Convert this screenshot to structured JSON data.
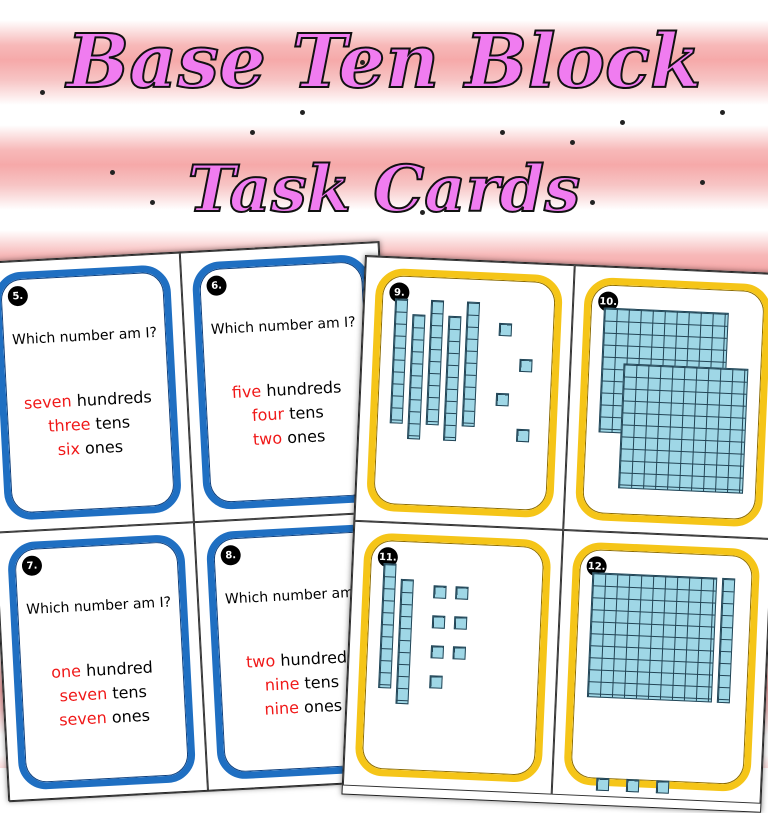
{
  "title": {
    "line1": "Base Ten Block",
    "line2": "Task Cards"
  },
  "colors": {
    "title_fill": "#f07cf0",
    "red_words": "#f01818",
    "blue_frame": "#1f6fc2",
    "yellow_frame": "#f5c518",
    "block": "#9fd7e6"
  },
  "left_sheet": {
    "cards": [
      {
        "number": "5.",
        "question": "Which number am I?",
        "lines": [
          {
            "red": "seven",
            "black": " hundreds"
          },
          {
            "red": "three",
            "black": " tens"
          },
          {
            "red": "six",
            "black": " ones"
          }
        ]
      },
      {
        "number": "6.",
        "question": "Which number am I?",
        "lines": [
          {
            "red": "five",
            "black": " hundreds"
          },
          {
            "red": "four",
            "black": " tens"
          },
          {
            "red": "two",
            "black": " ones"
          }
        ]
      },
      {
        "number": "7.",
        "question": "Which number am I?",
        "lines": [
          {
            "red": "one",
            "black": " hundred"
          },
          {
            "red": "seven",
            "black": " tens"
          },
          {
            "red": "seven",
            "black": " ones"
          }
        ]
      },
      {
        "number": "8.",
        "question": "Which number am I?",
        "lines": [
          {
            "red": "two",
            "black": " hundreds"
          },
          {
            "red": "nine",
            "black": " tens"
          },
          {
            "red": "nine",
            "black": " ones"
          }
        ]
      }
    ]
  },
  "right_sheet": {
    "cards": [
      {
        "number": "9.",
        "flats": 0,
        "rods": 5,
        "units": 4
      },
      {
        "number": "10.",
        "flats": 2,
        "rods": 0,
        "units": 0
      },
      {
        "number": "11.",
        "flats": 0,
        "rods": 2,
        "units": 7
      },
      {
        "number": "12.",
        "flats": 1,
        "rods": 1,
        "units": 3
      }
    ]
  }
}
